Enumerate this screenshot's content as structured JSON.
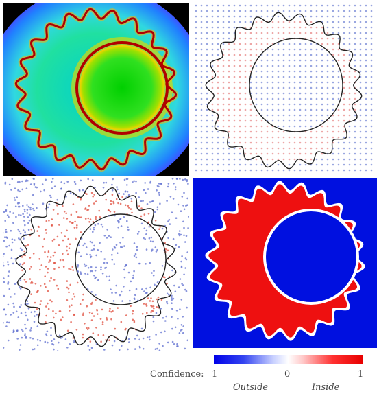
{
  "legend": {
    "title": "Confidence:",
    "tick_left": "1",
    "tick_mid": "0",
    "tick_right": "1",
    "label_outside": "Outside",
    "label_inside": "Inside",
    "colors": {
      "outside": "#0000e8",
      "neutral": "#ffffff",
      "inside": "#e80000"
    }
  },
  "panels": [
    {
      "id": "field-heatmap",
      "style": "jet-colormap"
    },
    {
      "id": "grid-samples",
      "style": "regular-point-grid"
    },
    {
      "id": "random-samples",
      "style": "scattered-points"
    },
    {
      "id": "classification",
      "style": "red-blue-regions"
    }
  ]
}
